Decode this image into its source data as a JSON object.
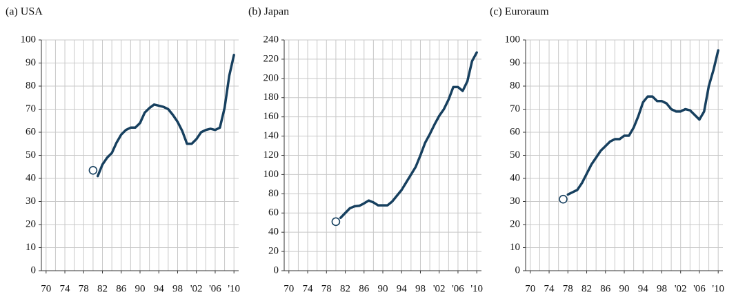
{
  "chart_data": [
    {
      "type": "line",
      "title": "(a) USA",
      "color": "#17405f",
      "x": [
        1981,
        1982,
        1983,
        1984,
        1985,
        1986,
        1987,
        1988,
        1989,
        1990,
        1991,
        1992,
        1993,
        1994,
        1995,
        1996,
        1997,
        1998,
        1999,
        2000,
        2001,
        2002,
        2003,
        2004,
        2005,
        2006,
        2007,
        2008,
        2009,
        2010
      ],
      "values": [
        41,
        46,
        49,
        51,
        55.5,
        59,
        61,
        62,
        62,
        64,
        68.5,
        70.5,
        72,
        71.5,
        71,
        70,
        67.5,
        64.5,
        60.5,
        55,
        55,
        57,
        60,
        61,
        61.5,
        61,
        62,
        70.5,
        84.5,
        93.5
      ],
      "marker": {
        "x": 1980,
        "y": 43.5
      },
      "xlim": [
        1969,
        2011
      ],
      "ylim": [
        0,
        100
      ],
      "x_minor_step": 2,
      "grid": true,
      "xticks": [
        {
          "value": 1970,
          "label": "70"
        },
        {
          "value": 1974,
          "label": "74"
        },
        {
          "value": 1978,
          "label": "78"
        },
        {
          "value": 1982,
          "label": "82"
        },
        {
          "value": 1986,
          "label": "86"
        },
        {
          "value": 1990,
          "label": "90"
        },
        {
          "value": 1994,
          "label": "94"
        },
        {
          "value": 1998,
          "label": "98"
        },
        {
          "value": 2002,
          "label": "'02"
        },
        {
          "value": 2006,
          "label": "'06"
        },
        {
          "value": 2010,
          "label": "'10"
        }
      ],
      "yticks": [
        0,
        10,
        20,
        30,
        40,
        50,
        60,
        70,
        80,
        90,
        100
      ]
    },
    {
      "type": "line",
      "title": "(b) Japan",
      "color": "#17405f",
      "x": [
        1981,
        1982,
        1983,
        1984,
        1985,
        1986,
        1987,
        1988,
        1989,
        1990,
        1991,
        1992,
        1993,
        1994,
        1995,
        1996,
        1997,
        1998,
        1999,
        2000,
        2001,
        2002,
        2003,
        2004,
        2005,
        2006,
        2007,
        2008,
        2009,
        2010
      ],
      "values": [
        55,
        60,
        65,
        67,
        67.5,
        70,
        73,
        71,
        68,
        68,
        68,
        72,
        78,
        84,
        92,
        100,
        108,
        120,
        133,
        142,
        152,
        161,
        168,
        178,
        191,
        191,
        187,
        197,
        218,
        227
      ],
      "marker": {
        "x": 1980,
        "y": 51
      },
      "xlim": [
        1969,
        2011
      ],
      "ylim": [
        0,
        240
      ],
      "x_minor_step": 2,
      "grid": true,
      "xticks": [
        {
          "value": 1970,
          "label": "70"
        },
        {
          "value": 1974,
          "label": "74"
        },
        {
          "value": 1978,
          "label": "78"
        },
        {
          "value": 1982,
          "label": "82"
        },
        {
          "value": 1986,
          "label": "86"
        },
        {
          "value": 1990,
          "label": "90"
        },
        {
          "value": 1994,
          "label": "94"
        },
        {
          "value": 1998,
          "label": "98"
        },
        {
          "value": 2002,
          "label": "'02"
        },
        {
          "value": 2006,
          "label": "'06"
        },
        {
          "value": 2010,
          "label": "'10"
        }
      ],
      "yticks": [
        0,
        20,
        40,
        60,
        80,
        100,
        120,
        140,
        160,
        180,
        200,
        220,
        240
      ]
    },
    {
      "type": "line",
      "title": "(c) Euroraum",
      "color": "#17405f",
      "x": [
        1978,
        1979,
        1980,
        1981,
        1982,
        1983,
        1984,
        1985,
        1986,
        1987,
        1988,
        1989,
        1990,
        1991,
        1992,
        1993,
        1994,
        1995,
        1996,
        1997,
        1998,
        1999,
        2000,
        2001,
        2002,
        2003,
        2004,
        2005,
        2006,
        2007,
        2008,
        2009,
        2010
      ],
      "values": [
        33,
        34,
        35,
        38,
        42,
        46,
        49,
        52,
        54,
        56,
        57,
        57,
        58.5,
        58.5,
        62,
        67,
        73,
        75.5,
        75.5,
        73.5,
        73.5,
        72.5,
        70,
        69,
        69,
        70,
        69.5,
        67.5,
        65.5,
        69,
        80,
        87,
        95.5
      ],
      "marker": {
        "x": 1977,
        "y": 31
      },
      "xlim": [
        1969,
        2011
      ],
      "ylim": [
        0,
        100
      ],
      "x_minor_step": 2,
      "grid": true,
      "xticks": [
        {
          "value": 1970,
          "label": "70"
        },
        {
          "value": 1974,
          "label": "74"
        },
        {
          "value": 1978,
          "label": "78"
        },
        {
          "value": 1982,
          "label": "82"
        },
        {
          "value": 1986,
          "label": "86"
        },
        {
          "value": 1990,
          "label": "90"
        },
        {
          "value": 1994,
          "label": "94"
        },
        {
          "value": 1998,
          "label": "98"
        },
        {
          "value": 2002,
          "label": "'02"
        },
        {
          "value": 2006,
          "label": "'06"
        },
        {
          "value": 2010,
          "label": "'10"
        }
      ],
      "yticks": [
        0,
        10,
        20,
        30,
        40,
        50,
        60,
        70,
        80,
        90,
        100
      ]
    }
  ]
}
